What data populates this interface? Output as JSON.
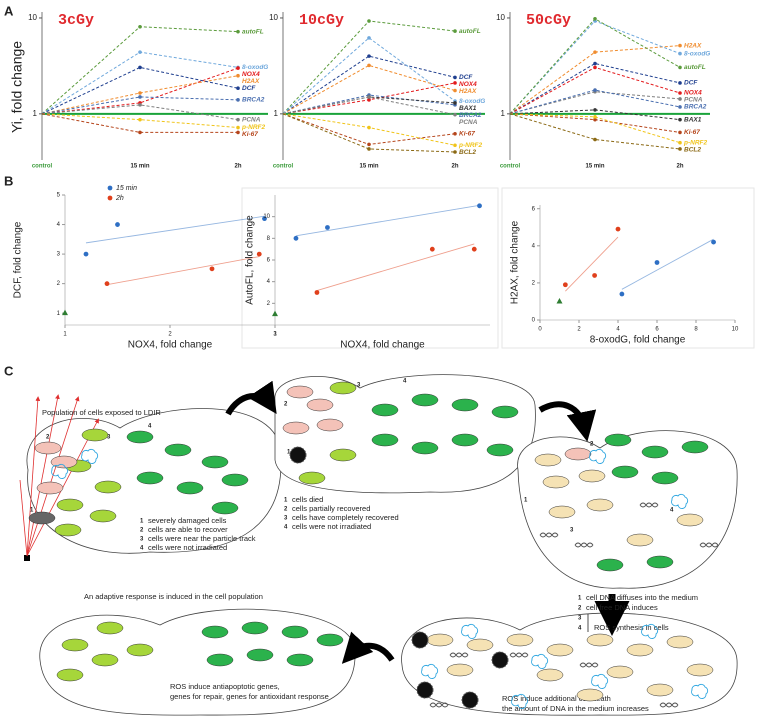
{
  "panel_labels": [
    "A",
    "B",
    "C"
  ],
  "chart_data": [
    {
      "type": "line",
      "title": "3cGy",
      "ylabel": "Yi, fold change",
      "categories": [
        "control",
        "15 min",
        "2h"
      ],
      "log_scale": true,
      "ylim": [
        0.33,
        11
      ],
      "yticks": [
        1,
        10
      ],
      "reference_line": 1,
      "series": [
        {
          "name": "autoFL",
          "color": "#5b9b3c",
          "values": [
            1,
            8.1,
            7.2
          ]
        },
        {
          "name": "8-oxodG",
          "color": "#6fa8dc",
          "values": [
            1,
            4.4,
            3.05
          ]
        },
        {
          "name": "NOX4",
          "color": "#e31a1c",
          "values": [
            1,
            1.3,
            3.0
          ]
        },
        {
          "name": "H2AX",
          "color": "#f08c2e",
          "values": [
            1,
            1.65,
            2.5
          ]
        },
        {
          "name": "BRCA2",
          "color": "#4a6fb0",
          "values": [
            1,
            1.5,
            1.4
          ]
        },
        {
          "name": "DCF",
          "color": "#1f3f8f",
          "values": [
            1,
            3.05,
            1.85
          ]
        },
        {
          "name": "PCNA",
          "color": "#7f7f7f",
          "values": [
            1,
            1.24,
            0.87
          ]
        },
        {
          "name": "p-NRF2",
          "color": "#f0c419",
          "values": [
            1,
            0.87,
            0.72
          ]
        },
        {
          "name": "Ki-67",
          "color": "#b5451b",
          "values": [
            1,
            0.64,
            0.64
          ]
        }
      ]
    },
    {
      "type": "line",
      "title": "10cGy",
      "categories": [
        "control",
        "15 min",
        "2h"
      ],
      "log_scale": true,
      "ylim": [
        0.33,
        11
      ],
      "yticks": [
        1,
        10
      ],
      "reference_line": 1,
      "series": [
        {
          "name": "autoFL",
          "color": "#5b9b3c",
          "values": [
            1,
            9.3,
            7.3
          ]
        },
        {
          "name": "DCF",
          "color": "#1f3f8f",
          "values": [
            1,
            4.0,
            2.4
          ]
        },
        {
          "name": "NOX4",
          "color": "#e31a1c",
          "values": [
            1,
            1.4,
            2.1
          ]
        },
        {
          "name": "H2AX",
          "color": "#f08c2e",
          "values": [
            1,
            3.2,
            1.75
          ]
        },
        {
          "name": "8-oxodG",
          "color": "#6fa8dc",
          "values": [
            1,
            6.2,
            1.36
          ]
        },
        {
          "name": "BRCA2",
          "color": "#4a6fb0",
          "values": [
            1,
            1.57,
            1.24
          ]
        },
        {
          "name": "BAX1",
          "color": "#333333",
          "values": [
            1,
            1.5,
            1.3
          ]
        },
        {
          "name": "PCNA",
          "color": "#7f7f7f",
          "values": [
            1,
            1.5,
            0.98
          ]
        },
        {
          "name": "Ki-67",
          "color": "#b5451b",
          "values": [
            1,
            0.48,
            0.62
          ]
        },
        {
          "name": "p-NRF2",
          "color": "#f0c419",
          "values": [
            1,
            0.72,
            0.47
          ]
        },
        {
          "name": "BCL2",
          "color": "#8b6914",
          "values": [
            1,
            0.43,
            0.4
          ]
        }
      ]
    },
    {
      "type": "line",
      "title": "50cGy",
      "categories": [
        "control",
        "15 min",
        "2h"
      ],
      "log_scale": true,
      "ylim": [
        0.33,
        11
      ],
      "yticks": [
        1,
        10
      ],
      "reference_line": 1,
      "series": [
        {
          "name": "H2AX",
          "color": "#f08c2e",
          "values": [
            1,
            4.4,
            5.15
          ]
        },
        {
          "name": "8-oxodG",
          "color": "#6fa8dc",
          "values": [
            1,
            9.3,
            4.25
          ]
        },
        {
          "name": "autoFL",
          "color": "#5b9b3c",
          "values": [
            1,
            9.8,
            3.05
          ]
        },
        {
          "name": "DCF",
          "color": "#1f3f8f",
          "values": [
            1,
            3.35,
            2.1
          ]
        },
        {
          "name": "NOX4",
          "color": "#e31a1c",
          "values": [
            1,
            3.05,
            1.65
          ]
        },
        {
          "name": "PCNA",
          "color": "#7f7f7f",
          "values": [
            1,
            1.7,
            1.43
          ]
        },
        {
          "name": "BRCA2",
          "color": "#4a6fb0",
          "values": [
            1,
            1.77,
            1.18
          ]
        },
        {
          "name": "BAX1",
          "color": "#333333",
          "values": [
            1,
            1.1,
            0.87
          ]
        },
        {
          "name": "Ki-67",
          "color": "#b5451b",
          "values": [
            1,
            0.87,
            0.64
          ]
        },
        {
          "name": "p-NRF2",
          "color": "#f0c419",
          "values": [
            1,
            0.93,
            0.5
          ]
        },
        {
          "name": "BCL2",
          "color": "#8b6914",
          "values": [
            1,
            0.54,
            0.43
          ]
        }
      ]
    },
    {
      "type": "scatter",
      "xlabel": "NOX4, fold change",
      "ylabel": "DCF, fold change",
      "xlim": [
        1,
        3
      ],
      "xticks": [
        1,
        2,
        3
      ],
      "ylim": [
        0.6,
        5
      ],
      "yticks": [
        1,
        2,
        3,
        4,
        5
      ],
      "legend": "top-left",
      "trendline": true,
      "control": {
        "x": 1,
        "value": 1,
        "color": "#2e7d32"
      },
      "series": [
        {
          "name": "15 min",
          "color": "#2e6fc4",
          "x": [
            1.2,
            1.5,
            2.9
          ],
          "values": [
            3,
            4,
            4.2
          ]
        },
        {
          "name": "2h",
          "color": "#e0401c",
          "x": [
            1.4,
            2.4,
            2.85
          ],
          "values": [
            2,
            2.5,
            3
          ]
        }
      ]
    },
    {
      "type": "scatter",
      "xlabel": "NOX4, fold change",
      "ylabel": "AutoFL, fold change",
      "xlim": [
        1,
        3.05
      ],
      "xticks": [
        1
      ],
      "ylim": [
        0,
        12
      ],
      "yticks": [
        2,
        4,
        6,
        8,
        10
      ],
      "trendline": true,
      "control": {
        "x": 1,
        "value": 1,
        "color": "#2e7d32"
      },
      "series": [
        {
          "color": "#2e6fc4",
          "x": [
            1.2,
            1.5,
            2.95
          ],
          "values": [
            8,
            9,
            11
          ]
        },
        {
          "color": "#e0401c",
          "x": [
            1.4,
            2.5,
            2.9
          ],
          "values": [
            3,
            7,
            7
          ]
        }
      ]
    },
    {
      "type": "scatter",
      "xlabel": "8-oxodG, fold change",
      "ylabel": "H2AX, fold change",
      "xlim": [
        0,
        10
      ],
      "xticks": [
        0,
        2,
        4,
        6,
        8,
        10
      ],
      "ylim": [
        0,
        6.2
      ],
      "yticks": [
        0,
        2,
        4,
        6
      ],
      "trendline": true,
      "control": {
        "x": 1,
        "value": 1,
        "color": "#2e7d32"
      },
      "series": [
        {
          "color": "#2e6fc4",
          "x": [
            4.2,
            6,
            8.9
          ],
          "values": [
            1.4,
            3.1,
            4.2
          ]
        },
        {
          "color": "#e0401c",
          "x": [
            1.3,
            2.8,
            4
          ],
          "values": [
            1.9,
            2.4,
            4.9
          ]
        }
      ]
    }
  ],
  "diagram": {
    "stages": [
      {
        "title": "Population of cells exposed to LDIR",
        "legend": [
          {
            "number": "1",
            "text": "severely damaged cells"
          },
          {
            "number": "2",
            "text": "cells are able to recover"
          },
          {
            "number": "3",
            "text": "cells were near the particle track"
          },
          {
            "number": "4",
            "text": "cells were not irradiated"
          }
        ]
      },
      {
        "legend": [
          {
            "number": "1",
            "text": "cells died"
          },
          {
            "number": "2",
            "text": "cells partially recovered"
          },
          {
            "number": "3",
            "text": "cells have completely recovered"
          },
          {
            "number": "4",
            "text": "cells were not irradiated"
          }
        ]
      },
      {
        "legend": [
          {
            "number": "1",
            "text": "cell DNA diffuses into the medium"
          },
          {
            "number": "2",
            "text": "cell free DNA induces"
          },
          {
            "number": "3"
          },
          {
            "number": "4",
            "text": "ROS synthesis in cells"
          }
        ]
      },
      {
        "lines": [
          "ROS induce additional cell death",
          "the amount of DNA in the medium increases"
        ]
      },
      {
        "title": "An adaptive response is induced in the cell population",
        "lines": [
          "ROS induce antiapoptotic genes,",
          "genes for repair, genes for antioxidant response"
        ]
      }
    ]
  }
}
